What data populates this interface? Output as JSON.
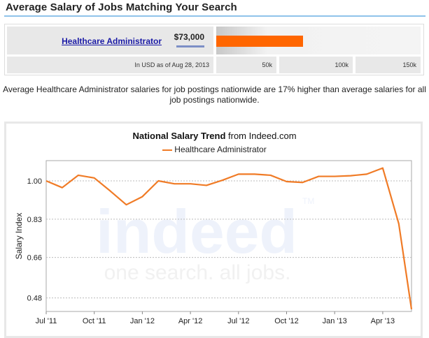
{
  "header": {
    "title": "Average Salary of Jobs Matching Your Search"
  },
  "salary_box": {
    "job_title": "Healthcare Administrator",
    "salary": "$73,000",
    "salary_value": 73000,
    "bar_max": 160000,
    "bar_color": "#ff6600",
    "as_of": "In USD as of Aug 28, 2013",
    "scale_labels": [
      "50k",
      "100k",
      "150k"
    ]
  },
  "description": "Average Healthcare Administrator salaries for job postings nationwide are 17% higher than average salaries for all job postings nationwide.",
  "chart": {
    "title_bold": "National Salary Trend",
    "title_rest": " from Indeed.com",
    "watermark_logo": "indeed",
    "watermark_tm": "TM",
    "watermark_tagline": "one search. all jobs."
  },
  "chart_data": {
    "type": "line",
    "title": "National Salary Trend from Indeed.com",
    "ylabel": "Salary Index",
    "xlabel": "",
    "ylim": [
      0.42,
      1.09
    ],
    "yticks": [
      "1.00",
      "0.83",
      "0.66",
      "0.48"
    ],
    "ytick_values": [
      1.0,
      0.83,
      0.66,
      0.48
    ],
    "xticks": [
      "Jul '11",
      "Oct '11",
      "Jan '12",
      "Apr '12",
      "Jul '12",
      "Oct '12",
      "Jan '13",
      "Apr '13"
    ],
    "x": [
      "Jul '11",
      "Aug '11",
      "Sep '11",
      "Oct '11",
      "Nov '11",
      "Dec '11",
      "Jan '12",
      "Feb '12",
      "Mar '12",
      "Apr '12",
      "May '12",
      "Jun '12",
      "Jul '12",
      "Aug '12",
      "Sep '12",
      "Oct '12",
      "Nov '12",
      "Dec '12",
      "Jan '13",
      "Feb '13",
      "Mar '13",
      "Apr '13",
      "May '13",
      "Jun '13"
    ],
    "series": [
      {
        "name": "Healthcare Administrator",
        "color": "#f07b26",
        "values": [
          1.0,
          0.97,
          1.025,
          1.013,
          0.955,
          0.894,
          0.93,
          1.0,
          0.987,
          0.987,
          0.98,
          1.003,
          1.03,
          1.03,
          1.025,
          0.997,
          0.993,
          1.02,
          1.02,
          1.023,
          1.03,
          1.057,
          0.81,
          0.43
        ]
      }
    ],
    "grid": "horizontal dashed",
    "legend": "top-center"
  }
}
